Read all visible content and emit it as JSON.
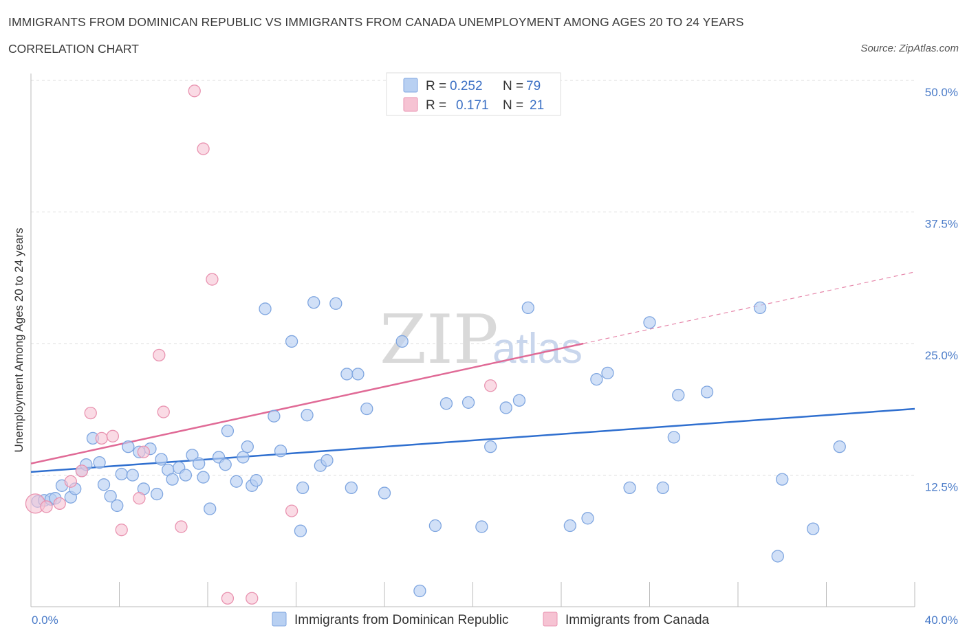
{
  "header": {
    "title": "IMMIGRANTS FROM DOMINICAN REPUBLIC VS IMMIGRANTS FROM CANADA UNEMPLOYMENT AMONG AGES 20 TO 24 YEARS",
    "subtitle": "CORRELATION CHART",
    "source": "Source: ZipAtlas.com"
  },
  "watermark": {
    "zip": "ZIP",
    "atlas": "atlas"
  },
  "legend": {
    "blue": {
      "r_label": "R =",
      "r_value": "0.252",
      "n_label": "N =",
      "n_value": "79"
    },
    "pink": {
      "r_label": "R =",
      "r_value": "0.171",
      "n_label": "N =",
      "n_value": "21"
    }
  },
  "bottom_legend": {
    "blue_label": "Immigrants from Dominican Republic",
    "pink_label": "Immigrants from Canada"
  },
  "colors": {
    "blue_fill": "#b8d0f2",
    "blue_stroke": "#7fa6e0",
    "blue_line": "#2f6fcf",
    "pink_fill": "#f6c3d3",
    "pink_stroke": "#e993b0",
    "pink_line": "#e06a96",
    "grid": "#dddddd",
    "tick_text": "#4a7bc8"
  },
  "chart_data": {
    "type": "scatter",
    "title": "IMMIGRANTS FROM DOMINICAN REPUBLIC VS IMMIGRANTS FROM CANADA UNEMPLOYMENT AMONG AGES 20 TO 24 YEARS",
    "xlabel": "",
    "ylabel": "Unemployment Among Ages 20 to 24 years",
    "xlim": [
      0,
      40
    ],
    "ylim": [
      0,
      50
    ],
    "x_tick_labels": [
      "0.0%",
      "40.0%"
    ],
    "y_ticks": [
      12.5,
      25.0,
      37.5,
      50.0
    ],
    "y_tick_labels": [
      "12.5%",
      "25.0%",
      "37.5%",
      "50.0%"
    ],
    "grid": true,
    "legend_position": "top-center",
    "series": [
      {
        "name": "Immigrants from Dominican Republic",
        "color": "#7fa6e0",
        "trend": {
          "x": [
            0,
            40
          ],
          "y": [
            12.8,
            18.8
          ],
          "style": "solid"
        },
        "points": [
          [
            0.3,
            10.0
          ],
          [
            0.6,
            10.1
          ],
          [
            0.9,
            10.2
          ],
          [
            1.1,
            10.3
          ],
          [
            1.4,
            11.5
          ],
          [
            1.8,
            10.4
          ],
          [
            2.0,
            11.2
          ],
          [
            2.3,
            12.9
          ],
          [
            2.5,
            13.5
          ],
          [
            2.8,
            16.0
          ],
          [
            3.1,
            13.7
          ],
          [
            3.3,
            11.6
          ],
          [
            3.6,
            10.5
          ],
          [
            3.9,
            9.6
          ],
          [
            4.1,
            12.6
          ],
          [
            4.4,
            15.2
          ],
          [
            4.6,
            12.5
          ],
          [
            4.9,
            14.7
          ],
          [
            5.1,
            11.2
          ],
          [
            5.4,
            15.0
          ],
          [
            5.7,
            10.7
          ],
          [
            5.9,
            14.0
          ],
          [
            6.2,
            13.0
          ],
          [
            6.4,
            12.1
          ],
          [
            6.7,
            13.2
          ],
          [
            7.0,
            12.5
          ],
          [
            7.3,
            14.4
          ],
          [
            7.6,
            13.6
          ],
          [
            7.8,
            12.3
          ],
          [
            8.1,
            9.3
          ],
          [
            8.5,
            14.2
          ],
          [
            8.8,
            13.5
          ],
          [
            8.9,
            16.7
          ],
          [
            9.3,
            11.9
          ],
          [
            9.6,
            14.2
          ],
          [
            9.8,
            15.2
          ],
          [
            10.0,
            11.5
          ],
          [
            10.2,
            12.0
          ],
          [
            10.6,
            28.3
          ],
          [
            11.0,
            18.1
          ],
          [
            11.3,
            14.8
          ],
          [
            11.8,
            25.2
          ],
          [
            12.2,
            7.2
          ],
          [
            12.3,
            11.3
          ],
          [
            12.5,
            18.2
          ],
          [
            12.8,
            28.9
          ],
          [
            13.1,
            13.4
          ],
          [
            13.4,
            13.9
          ],
          [
            13.8,
            28.8
          ],
          [
            14.3,
            22.1
          ],
          [
            14.5,
            11.3
          ],
          [
            14.8,
            22.1
          ],
          [
            15.2,
            18.8
          ],
          [
            16.0,
            10.8
          ],
          [
            16.8,
            25.2
          ],
          [
            17.6,
            1.5
          ],
          [
            18.3,
            7.7
          ],
          [
            18.8,
            19.3
          ],
          [
            19.8,
            19.4
          ],
          [
            20.4,
            7.6
          ],
          [
            20.8,
            15.2
          ],
          [
            21.5,
            18.9
          ],
          [
            22.1,
            19.6
          ],
          [
            22.5,
            28.4
          ],
          [
            24.4,
            7.7
          ],
          [
            25.2,
            8.4
          ],
          [
            25.6,
            21.6
          ],
          [
            26.1,
            22.2
          ],
          [
            27.1,
            11.3
          ],
          [
            28.0,
            27.0
          ],
          [
            28.6,
            11.3
          ],
          [
            29.1,
            16.1
          ],
          [
            29.3,
            20.1
          ],
          [
            30.6,
            20.4
          ],
          [
            33.0,
            28.4
          ],
          [
            33.8,
            4.8
          ],
          [
            34.0,
            12.1
          ],
          [
            35.4,
            7.4
          ],
          [
            36.6,
            15.2
          ]
        ]
      },
      {
        "name": "Immigrants from Canada",
        "color": "#e993b0",
        "trend": {
          "x": [
            0,
            25,
            40
          ],
          "y": [
            13.6,
            25.0,
            31.8
          ],
          "style": "solid then dashed after x=25"
        },
        "points": [
          [
            0.2,
            9.8
          ],
          [
            0.7,
            9.5
          ],
          [
            1.3,
            9.8
          ],
          [
            1.8,
            11.9
          ],
          [
            2.3,
            12.9
          ],
          [
            2.7,
            18.4
          ],
          [
            3.2,
            16.0
          ],
          [
            3.7,
            16.2
          ],
          [
            4.1,
            7.3
          ],
          [
            4.9,
            10.3
          ],
          [
            5.1,
            14.7
          ],
          [
            5.8,
            23.9
          ],
          [
            6.0,
            18.5
          ],
          [
            6.8,
            7.6
          ],
          [
            7.4,
            49.0
          ],
          [
            7.8,
            43.5
          ],
          [
            8.2,
            31.1
          ],
          [
            8.9,
            0.8
          ],
          [
            10.0,
            0.8
          ],
          [
            11.8,
            9.1
          ],
          [
            20.8,
            21.0
          ]
        ]
      }
    ]
  }
}
